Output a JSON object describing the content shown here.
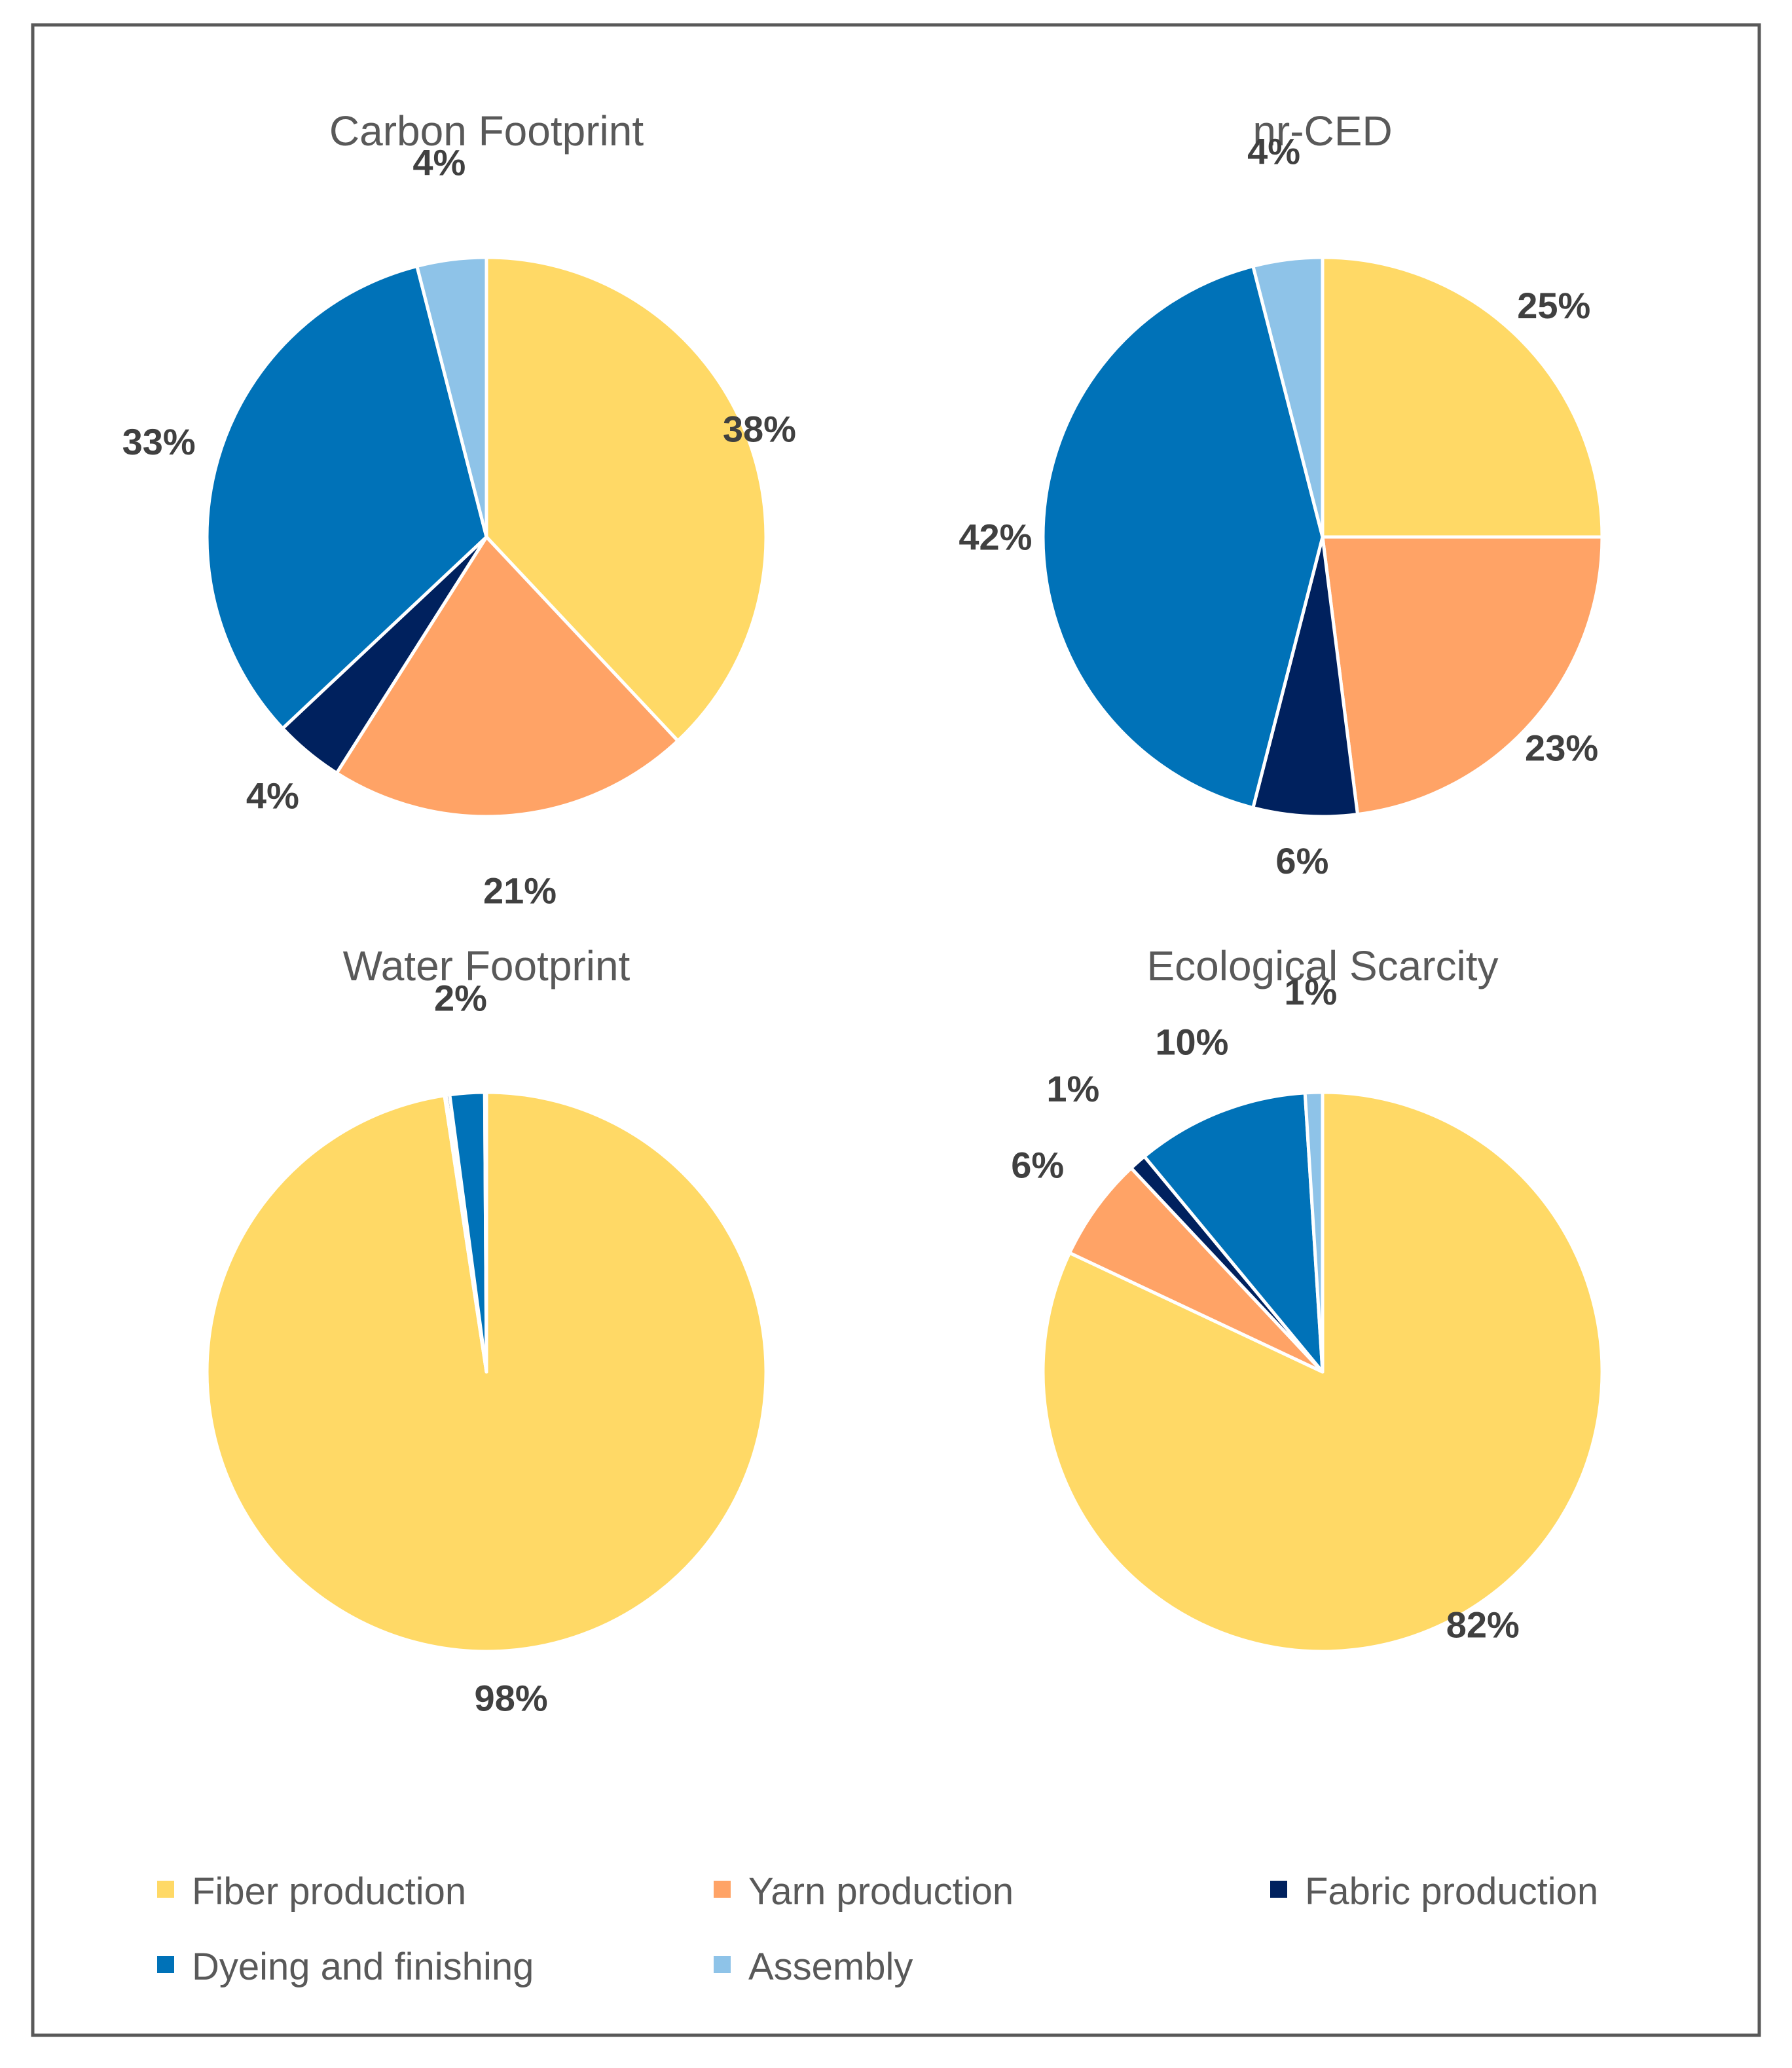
{
  "legend": [
    {
      "name": "Fiber production",
      "color": "#FFD966"
    },
    {
      "name": "Yarn production",
      "color": "#FFA366"
    },
    {
      "name": "Fabric production",
      "color": "#00215E"
    },
    {
      "name": "Dyeing and finishing",
      "color": "#0072B8"
    },
    {
      "name": "Assembly",
      "color": "#8EC3E8"
    }
  ],
  "chart_data": [
    {
      "type": "pie",
      "title": "Carbon Footprint",
      "categories": [
        "Fiber production",
        "Yarn production",
        "Fabric production",
        "Dyeing and finishing",
        "Assembly"
      ],
      "values": [
        38,
        21,
        4,
        33,
        4
      ],
      "labels": [
        "38%",
        "21%",
        "4%",
        "33%",
        "4%"
      ]
    },
    {
      "type": "pie",
      "title": "nr-CED",
      "categories": [
        "Fiber production",
        "Yarn production",
        "Fabric production",
        "Dyeing and finishing",
        "Assembly"
      ],
      "values": [
        25,
        23,
        6,
        42,
        4
      ],
      "labels": [
        "25%",
        "23%",
        "6%",
        "42%",
        "4%"
      ]
    },
    {
      "type": "pie",
      "title": "Water Footprint",
      "categories": [
        "Fiber production",
        "Yarn production",
        "Fabric production",
        "Dyeing and finishing",
        "Assembly"
      ],
      "values": [
        97.6,
        0.1,
        0.2,
        2,
        0.1
      ],
      "labels": [
        "98%",
        "",
        "",
        "2%",
        ""
      ]
    },
    {
      "type": "pie",
      "title": "Ecological Scarcity",
      "categories": [
        "Fiber production",
        "Yarn production",
        "Fabric production",
        "Dyeing and finishing",
        "Assembly"
      ],
      "values": [
        82,
        6,
        1,
        10,
        1
      ],
      "labels": [
        "82%",
        "6%",
        "1%",
        "10%",
        "1%"
      ]
    }
  ]
}
